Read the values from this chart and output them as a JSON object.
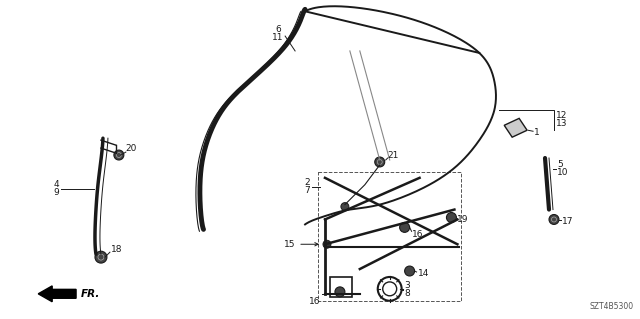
{
  "bg_color": "#ffffff",
  "line_color": "#1a1a1a",
  "diagram_code": "SZT4B5300",
  "fig_width": 6.4,
  "fig_height": 3.19,
  "dpi": 100
}
